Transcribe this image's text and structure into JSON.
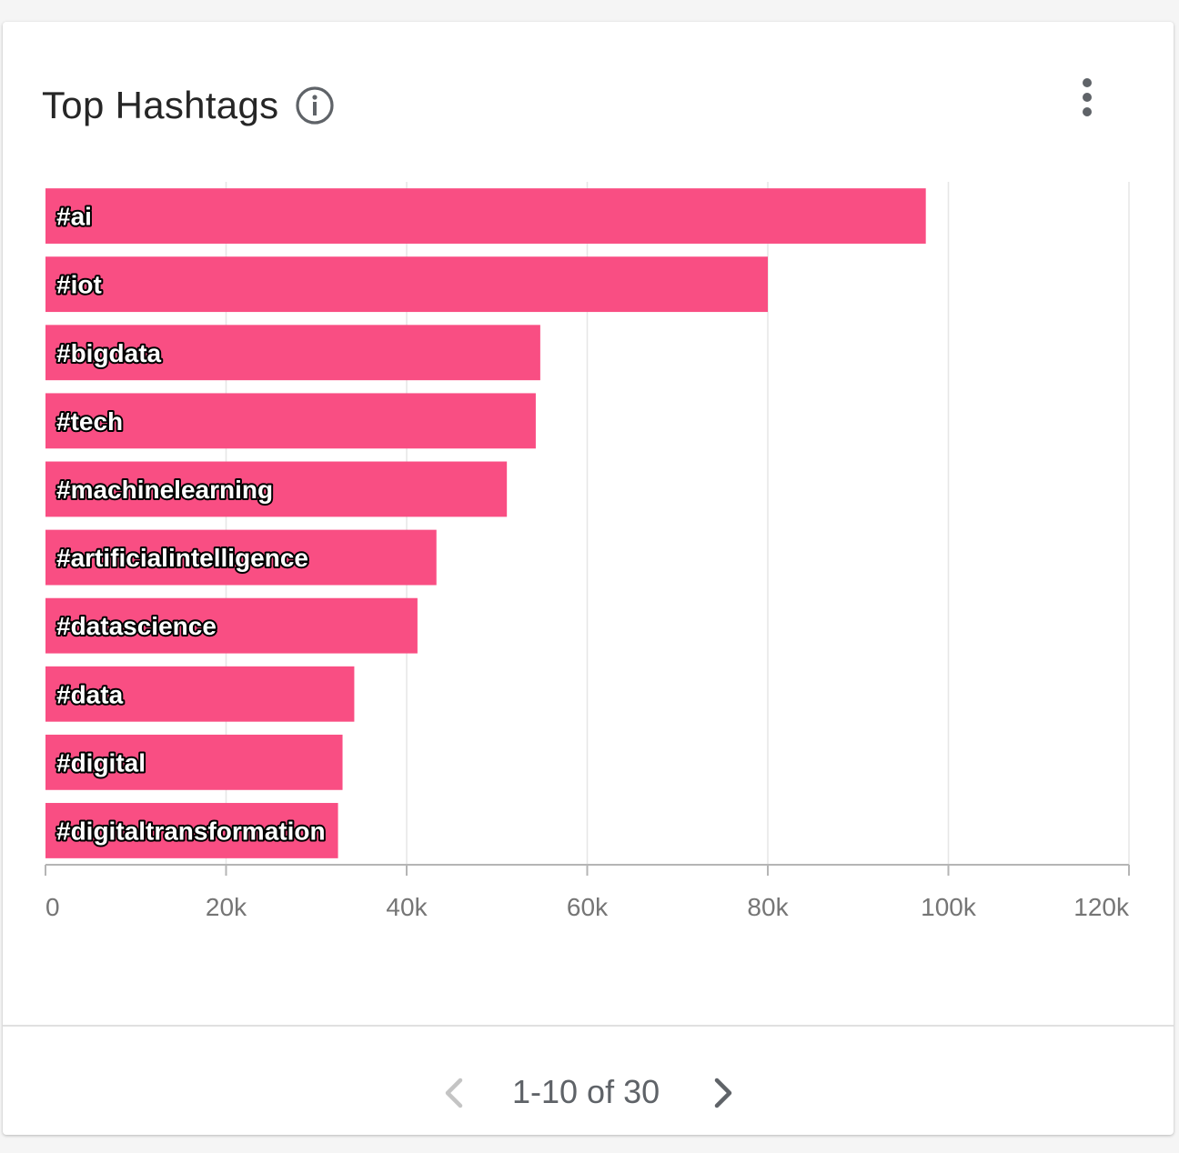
{
  "card": {
    "title": "Top Hashtags",
    "info_icon": "info-icon",
    "menu_icon": "more-vert-icon"
  },
  "pager": {
    "text": "1-10 of 30",
    "prev_icon": "chevron-left-icon",
    "next_icon": "chevron-right-icon",
    "prev_enabled": false,
    "next_enabled": true
  },
  "colors": {
    "bar": "#f94e83",
    "grid": "#e6e6e6",
    "axis": "#b5b5b5"
  },
  "chart_data": {
    "type": "bar",
    "orientation": "horizontal",
    "title": "",
    "categories": [
      "#ai",
      "#iot",
      "#bigdata",
      "#tech",
      "#machinelearning",
      "#artificialintelligence",
      "#datascience",
      "#data",
      "#digital",
      "#digitaltransformation"
    ],
    "values": [
      97500,
      80000,
      54800,
      54300,
      51100,
      43300,
      41200,
      34200,
      32900,
      32400
    ],
    "xlim": [
      0,
      120000
    ],
    "x_ticks": [
      0,
      20000,
      40000,
      60000,
      80000,
      100000,
      120000
    ],
    "x_tick_labels": [
      "0",
      "20k",
      "40k",
      "60k",
      "80k",
      "100k",
      "120k"
    ],
    "grid": true,
    "legend": "none"
  }
}
